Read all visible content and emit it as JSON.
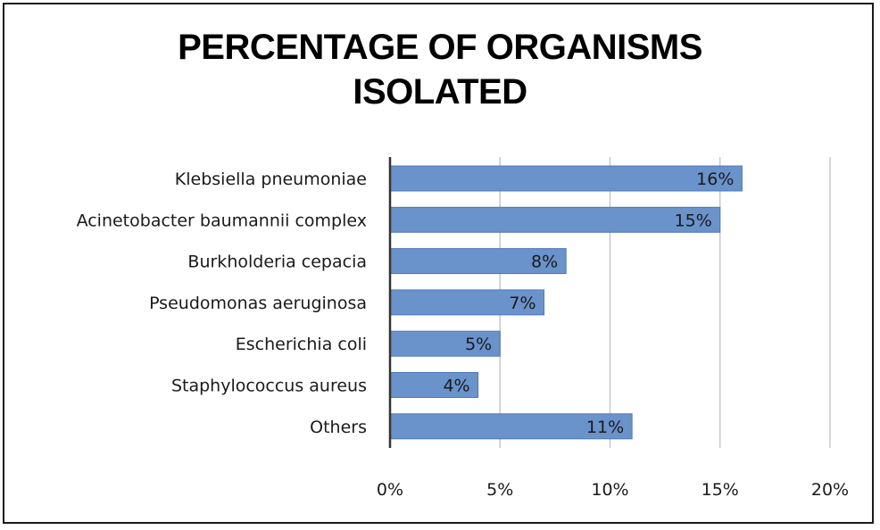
{
  "chart_data": {
    "type": "bar",
    "orientation": "horizontal",
    "title_lines": [
      "PERCENTAGE OF ORGANISMS",
      "ISOLATED"
    ],
    "categories": [
      "Klebsiella pneumoniae",
      "Acinetobacter baumannii complex",
      "Burkholderia cepacia",
      "Pseudomonas aeruginosa",
      "Escherichia coli",
      "Staphylococcus aureus",
      "Others"
    ],
    "values": [
      16,
      15,
      8,
      7,
      5,
      4,
      11
    ],
    "data_labels": [
      "16%",
      "15%",
      "8%",
      "7%",
      "5%",
      "4%",
      "11%"
    ],
    "xlim": [
      0,
      20
    ],
    "x_ticks": [
      0,
      5,
      10,
      15,
      20
    ],
    "x_tick_labels": [
      "0%",
      "5%",
      "10%",
      "15%",
      "20%"
    ],
    "xlabel": "",
    "ylabel": "",
    "grid": "vertical",
    "legend": "none",
    "colors": {
      "bar": "#6a92cb",
      "bar_edge": "#4f79b8",
      "grid": "#c8c8c8",
      "axis": "#333333"
    }
  }
}
